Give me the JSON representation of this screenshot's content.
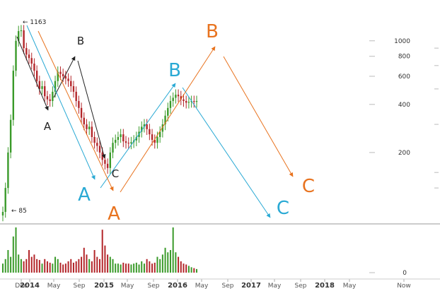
{
  "chart_data": {
    "type": "candlestick",
    "scale": "log",
    "y_ticks": [
      200,
      400,
      600,
      800,
      1000
    ],
    "volume_ticks": [
      0
    ],
    "x_ticks": [
      {
        "label": "Dec",
        "major": false
      },
      {
        "label": "2014",
        "major": true
      },
      {
        "label": "May",
        "major": false
      },
      {
        "label": "Sep",
        "major": false
      },
      {
        "label": "2015",
        "major": true
      },
      {
        "label": "May",
        "major": false
      },
      {
        "label": "Sep",
        "major": false
      },
      {
        "label": "2016",
        "major": true
      },
      {
        "label": "May",
        "major": false
      },
      {
        "label": "Sep",
        "major": false
      },
      {
        "label": "2017",
        "major": true
      },
      {
        "label": "May",
        "major": false
      },
      {
        "label": "Sep",
        "major": false
      },
      {
        "label": "2018",
        "major": true
      },
      {
        "label": "May",
        "major": false
      },
      {
        "label": "Now",
        "major": false
      }
    ],
    "annotations": {
      "high": "← 1163",
      "low": "← 85"
    },
    "wave_labels": [
      {
        "text": "A",
        "color": "#222222"
      },
      {
        "text": "B",
        "color": "#222222"
      },
      {
        "text": "C",
        "color": "#222222"
      },
      {
        "text": "A",
        "color": "#29a9d4"
      },
      {
        "text": "B",
        "color": "#29a9d4"
      },
      {
        "text": "C",
        "color": "#29a9d4"
      },
      {
        "text": "A",
        "color": "#e8731f"
      },
      {
        "text": "B",
        "color": "#e8731f"
      },
      {
        "text": "C",
        "color": "#e8731f"
      }
    ],
    "colors": {
      "up": "#3a9a2a",
      "down": "#b3262a",
      "black_wave": "#222222",
      "blue_wave": "#29a9d4",
      "orange_wave": "#e8731f",
      "grid": "#e5e5e5"
    },
    "series": [
      {
        "name": "price",
        "values": [
          85,
          120,
          200,
          320,
          650,
          1000,
          1150,
          1163,
          900,
          820,
          780,
          720,
          650,
          560,
          500,
          520,
          450,
          430,
          420,
          480,
          560,
          640,
          620,
          600,
          580,
          560,
          520,
          480,
          420,
          380,
          330,
          300,
          280,
          290,
          250,
          230,
          220,
          200,
          180,
          170,
          160,
          200,
          230,
          240,
          250,
          260,
          235,
          230,
          228,
          232,
          238,
          250,
          270,
          290,
          300,
          280,
          260,
          240,
          230,
          250,
          270,
          300,
          340,
          380,
          420,
          440,
          460,
          450,
          430,
          420,
          410,
          415,
          420,
          415,
          420
        ]
      },
      {
        "name": "volume",
        "values": [
          0.2,
          0.3,
          0.5,
          0.35,
          0.8,
          1.0,
          0.4,
          0.3,
          0.25,
          0.3,
          0.5,
          0.35,
          0.4,
          0.3,
          0.28,
          0.2,
          0.3,
          0.25,
          0.22,
          0.2,
          0.35,
          0.3,
          0.22,
          0.18,
          0.2,
          0.25,
          0.3,
          0.22,
          0.25,
          0.3,
          0.35,
          0.55,
          0.4,
          0.3,
          0.25,
          0.5,
          0.35,
          0.3,
          0.95,
          0.6,
          0.4,
          0.35,
          0.3,
          0.2,
          0.2,
          0.18,
          0.22,
          0.2,
          0.2,
          0.18,
          0.2,
          0.22,
          0.18,
          0.25,
          0.2,
          0.3,
          0.25,
          0.2,
          0.22,
          0.35,
          0.3,
          0.4,
          0.55,
          0.45,
          0.5,
          1.0,
          0.45,
          0.35,
          0.25,
          0.2,
          0.18,
          0.15,
          0.12,
          0.1,
          0.08
        ]
      }
    ],
    "ylim": [
      85,
      1300
    ]
  }
}
